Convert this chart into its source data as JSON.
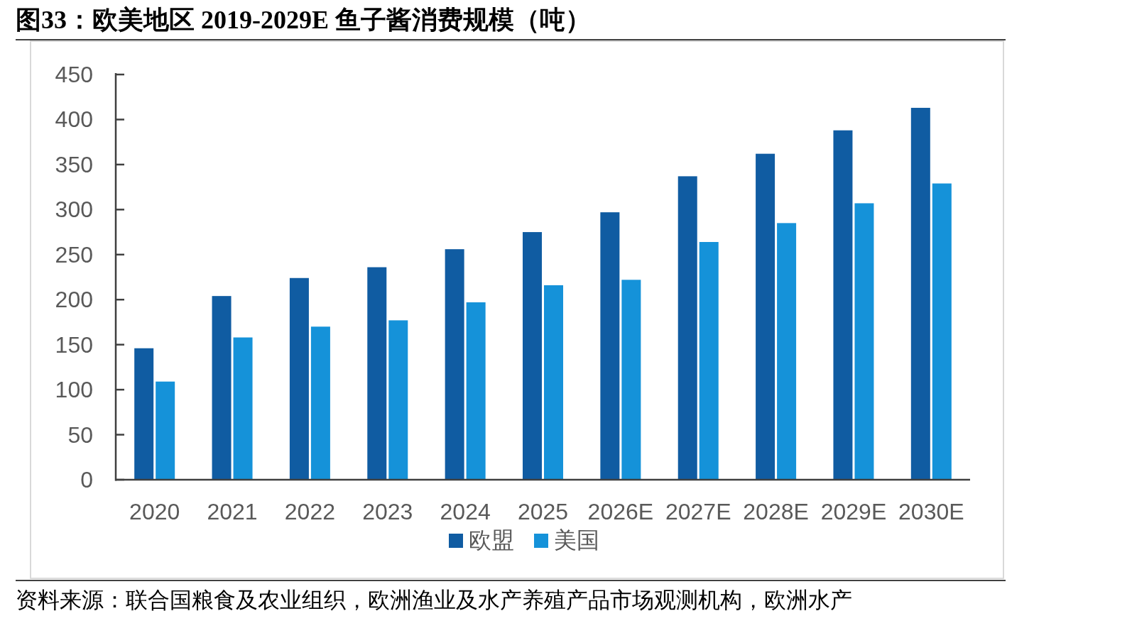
{
  "chart_data": {
    "type": "bar",
    "title": "图33：欧美地区 2019-2029E 鱼子酱消费规模（吨）",
    "categories": [
      "2020",
      "2021",
      "2022",
      "2023",
      "2024",
      "2025",
      "2026E",
      "2027E",
      "2028E",
      "2029E",
      "2030E"
    ],
    "series": [
      {
        "name": "欧盟",
        "color": "#105ca2",
        "values": [
          146,
          204,
          224,
          236,
          256,
          275,
          297,
          337,
          362,
          388,
          413
        ]
      },
      {
        "name": "美国",
        "color": "#1592d9",
        "values": [
          109,
          158,
          170,
          177,
          197,
          216,
          222,
          264,
          285,
          307,
          329
        ]
      }
    ],
    "ylim": [
      0,
      450
    ],
    "yticks": [
      0,
      50,
      100,
      150,
      200,
      250,
      300,
      350,
      400,
      450
    ],
    "legend": "bottom",
    "annotations": [
      "资料来源：联合国粮食及农业组织，欧洲渔业及水产养殖产品市场观测机构，欧洲水产"
    ]
  }
}
